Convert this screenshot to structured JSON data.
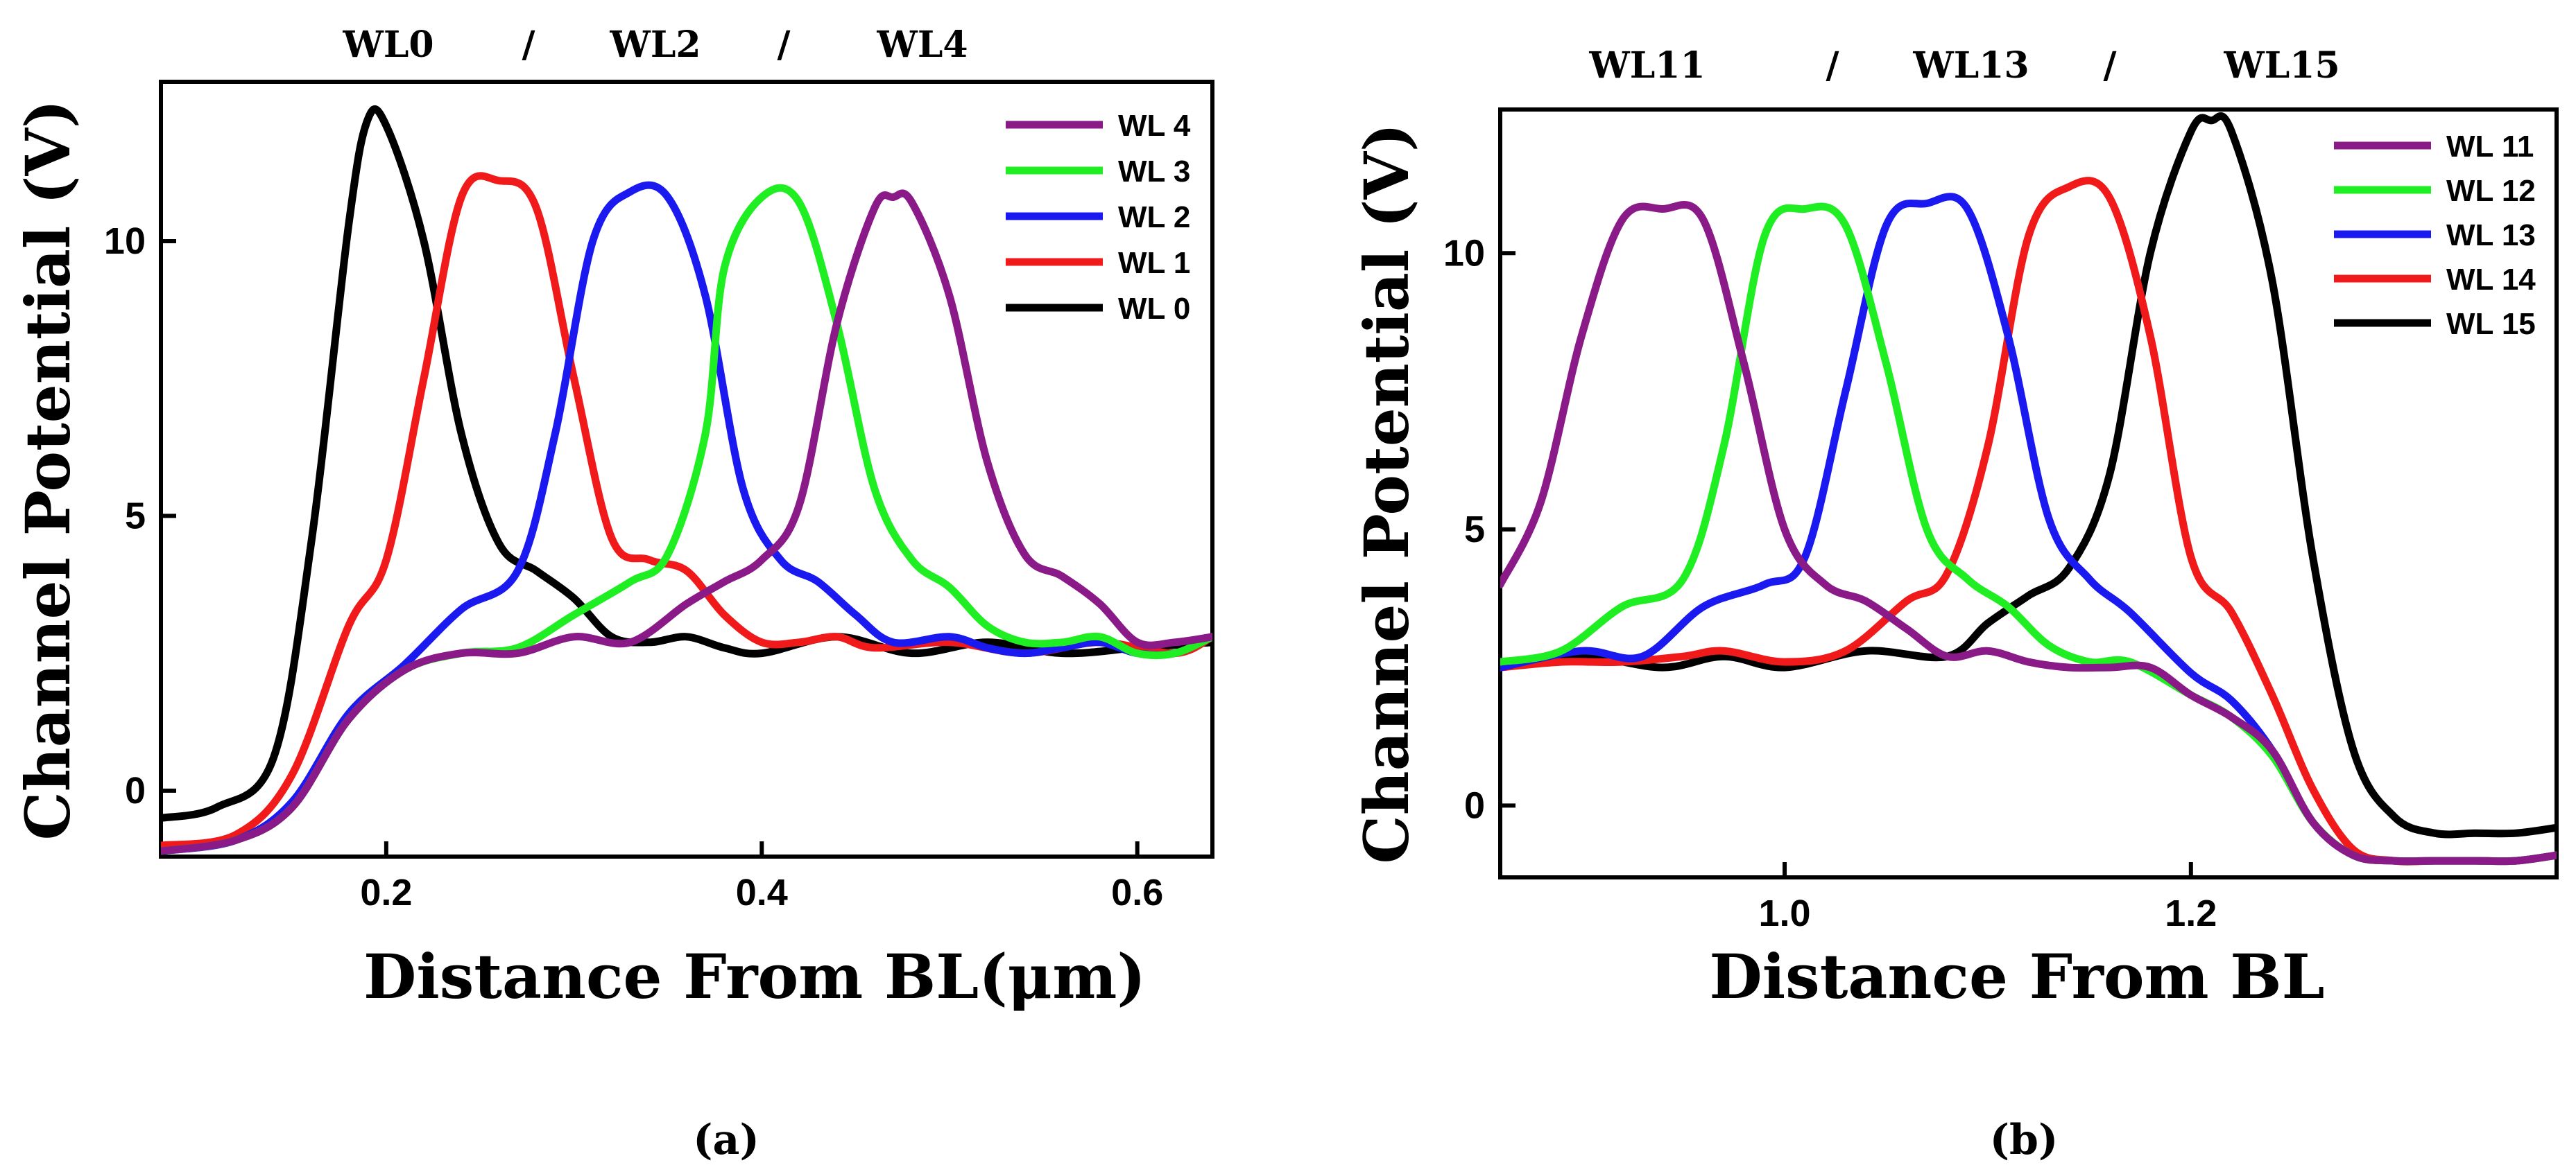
{
  "chart_data": [
    {
      "type": "line",
      "panel_label": "(a)",
      "header": {
        "left": "WL0",
        "sep1": "/",
        "mid": "WL2",
        "sep2": "/",
        "right": "WL4"
      },
      "title": "",
      "xlabel": "Distance From BL(μm)",
      "ylabel": "Channel Potential (V)",
      "xlim": [
        0.08,
        0.64
      ],
      "ylim": [
        -1.2,
        12.9
      ],
      "xticks": [
        0.2,
        0.4,
        0.6
      ],
      "xtick_labels": [
        "0.2",
        "0.4",
        "0.6"
      ],
      "yticks": [
        0,
        5,
        10
      ],
      "ytick_labels": [
        "0",
        "5",
        "10"
      ],
      "grid": false,
      "legend_position": "top-right",
      "legend": [
        "WL 4",
        "WL 3",
        "WL 2",
        "WL 1",
        "WL 0"
      ],
      "series": [
        {
          "name": "WL 4",
          "color": "#8B1A89",
          "x": [
            0.08,
            0.12,
            0.15,
            0.18,
            0.21,
            0.24,
            0.27,
            0.3,
            0.33,
            0.36,
            0.38,
            0.4,
            0.42,
            0.44,
            0.46,
            0.47,
            0.48,
            0.5,
            0.52,
            0.54,
            0.56,
            0.58,
            0.6,
            0.62,
            0.64
          ],
          "y": [
            -1.1,
            -0.9,
            -0.3,
            1.3,
            2.2,
            2.5,
            2.5,
            2.8,
            2.7,
            3.4,
            3.8,
            4.2,
            5.2,
            8.5,
            10.6,
            10.8,
            10.7,
            9.0,
            6.0,
            4.3,
            3.9,
            3.4,
            2.7,
            2.7,
            2.8
          ]
        },
        {
          "name": "WL 3",
          "color": "#1EEE22",
          "x": [
            0.08,
            0.12,
            0.15,
            0.18,
            0.21,
            0.24,
            0.27,
            0.3,
            0.33,
            0.35,
            0.37,
            0.38,
            0.4,
            0.42,
            0.44,
            0.46,
            0.48,
            0.5,
            0.52,
            0.54,
            0.56,
            0.58,
            0.6,
            0.62,
            0.64
          ],
          "y": [
            -1.1,
            -0.9,
            -0.3,
            1.3,
            2.2,
            2.5,
            2.6,
            3.2,
            3.8,
            4.3,
            6.5,
            9.5,
            10.8,
            10.7,
            8.5,
            5.5,
            4.2,
            3.7,
            3.0,
            2.7,
            2.7,
            2.8,
            2.5,
            2.5,
            2.8
          ]
        },
        {
          "name": "WL 2",
          "color": "#1A1AF0",
          "x": [
            0.08,
            0.12,
            0.15,
            0.18,
            0.21,
            0.24,
            0.27,
            0.29,
            0.31,
            0.33,
            0.35,
            0.37,
            0.39,
            0.41,
            0.43,
            0.45,
            0.47,
            0.5,
            0.52,
            0.54,
            0.56,
            0.58,
            0.6,
            0.62,
            0.64
          ],
          "y": [
            -1.1,
            -0.9,
            -0.2,
            1.4,
            2.3,
            3.3,
            4.0,
            6.5,
            10.0,
            10.9,
            10.8,
            9.0,
            5.5,
            4.2,
            3.8,
            3.2,
            2.7,
            2.8,
            2.6,
            2.5,
            2.6,
            2.7,
            2.5,
            2.5,
            2.8
          ]
        },
        {
          "name": "WL 1",
          "color": "#F01A1A",
          "x": [
            0.08,
            0.12,
            0.15,
            0.18,
            0.2,
            0.22,
            0.24,
            0.26,
            0.28,
            0.3,
            0.32,
            0.34,
            0.36,
            0.38,
            0.4,
            0.42,
            0.44,
            0.46,
            0.5,
            0.54,
            0.58,
            0.62,
            0.64
          ],
          "y": [
            -1.0,
            -0.8,
            0.3,
            3.0,
            4.2,
            7.5,
            10.8,
            11.1,
            10.6,
            7.5,
            4.6,
            4.2,
            4.0,
            3.2,
            2.7,
            2.7,
            2.8,
            2.6,
            2.7,
            2.5,
            2.7,
            2.5,
            2.8
          ]
        },
        {
          "name": "WL 0",
          "color": "#000000",
          "x": [
            0.08,
            0.11,
            0.14,
            0.16,
            0.18,
            0.19,
            0.2,
            0.22,
            0.24,
            0.26,
            0.28,
            0.3,
            0.32,
            0.34,
            0.36,
            0.38,
            0.4,
            0.44,
            0.48,
            0.52,
            0.56,
            0.6,
            0.64
          ],
          "y": [
            -0.5,
            -0.3,
            0.6,
            4.5,
            10.3,
            12.2,
            12.1,
            10.0,
            6.5,
            4.5,
            4.0,
            3.5,
            2.8,
            2.7,
            2.8,
            2.6,
            2.5,
            2.8,
            2.5,
            2.7,
            2.5,
            2.6,
            2.7
          ]
        }
      ]
    },
    {
      "type": "line",
      "panel_label": "(b)",
      "header": {
        "left": "WL11",
        "sep1": "/",
        "mid": "WL13",
        "sep2": "/",
        "right": "WL15"
      },
      "title": "",
      "xlabel": "Distance From BL",
      "ylabel": "Channel Potential (V)",
      "xlim": [
        0.86,
        1.38
      ],
      "ylim": [
        -1.3,
        12.6
      ],
      "xticks": [
        1.0,
        1.2
      ],
      "xtick_labels": [
        "1.0",
        "1.2"
      ],
      "yticks": [
        0,
        5,
        10
      ],
      "ytick_labels": [
        "0",
        "5",
        "10"
      ],
      "grid": false,
      "legend_position": "top-right",
      "legend": [
        "WL 11",
        "WL 12",
        "WL 13",
        "WL 14",
        "WL 15"
      ],
      "series": [
        {
          "name": "WL 11",
          "color": "#8B1A89",
          "x": [
            0.86,
            0.88,
            0.9,
            0.92,
            0.94,
            0.96,
            0.98,
            1.0,
            1.02,
            1.04,
            1.06,
            1.08,
            1.1,
            1.12,
            1.14,
            1.16,
            1.18,
            1.2,
            1.22,
            1.24,
            1.26,
            1.28,
            1.3,
            1.32,
            1.34,
            1.36,
            1.38
          ],
          "y": [
            4.0,
            5.5,
            8.5,
            10.6,
            10.8,
            10.6,
            8.0,
            5.0,
            4.0,
            3.7,
            3.2,
            2.7,
            2.8,
            2.6,
            2.5,
            2.5,
            2.5,
            2.0,
            1.6,
            1.0,
            -0.3,
            -0.9,
            -1.0,
            -1.0,
            -1.0,
            -1.0,
            -0.9
          ]
        },
        {
          "name": "WL 12",
          "color": "#1EEE22",
          "x": [
            0.86,
            0.89,
            0.92,
            0.95,
            0.97,
            0.99,
            1.01,
            1.03,
            1.05,
            1.07,
            1.09,
            1.11,
            1.13,
            1.15,
            1.17,
            1.2,
            1.22,
            1.24,
            1.26,
            1.28,
            1.3,
            1.32,
            1.34,
            1.36,
            1.38
          ],
          "y": [
            2.6,
            2.8,
            3.6,
            4.1,
            6.5,
            10.3,
            10.8,
            10.5,
            8.0,
            5.0,
            4.1,
            3.6,
            2.9,
            2.6,
            2.6,
            2.0,
            1.6,
            0.9,
            -0.3,
            -0.9,
            -1.0,
            -1.0,
            -1.0,
            -1.0,
            -0.9
          ]
        },
        {
          "name": "WL 13",
          "color": "#1A1AF0",
          "x": [
            0.86,
            0.9,
            0.93,
            0.96,
            0.99,
            1.01,
            1.03,
            1.05,
            1.07,
            1.09,
            1.11,
            1.13,
            1.15,
            1.17,
            1.2,
            1.22,
            1.24,
            1.26,
            1.28,
            1.3,
            1.32,
            1.34,
            1.36,
            1.38
          ],
          "y": [
            2.5,
            2.8,
            2.7,
            3.6,
            4.0,
            4.5,
            7.5,
            10.5,
            10.9,
            10.8,
            8.5,
            5.2,
            4.1,
            3.5,
            2.4,
            1.9,
            1.0,
            -0.3,
            -0.9,
            -1.0,
            -1.0,
            -1.0,
            -1.0,
            -0.9
          ]
        },
        {
          "name": "WL 14",
          "color": "#F01A1A",
          "x": [
            0.86,
            0.89,
            0.92,
            0.95,
            0.97,
            1.0,
            1.03,
            1.06,
            1.08,
            1.1,
            1.12,
            1.14,
            1.16,
            1.18,
            1.2,
            1.22,
            1.24,
            1.26,
            1.28,
            1.3,
            1.32,
            1.34,
            1.36,
            1.38
          ],
          "y": [
            2.5,
            2.6,
            2.6,
            2.7,
            2.8,
            2.6,
            2.8,
            3.7,
            4.2,
            6.5,
            10.3,
            11.2,
            11.0,
            8.5,
            4.5,
            3.5,
            2.0,
            0.3,
            -0.8,
            -1.0,
            -1.0,
            -1.0,
            -1.0,
            -0.9
          ]
        },
        {
          "name": "WL 15",
          "color": "#000000",
          "x": [
            0.86,
            0.9,
            0.94,
            0.97,
            1.0,
            1.04,
            1.08,
            1.1,
            1.12,
            1.14,
            1.16,
            1.18,
            1.2,
            1.21,
            1.22,
            1.24,
            1.26,
            1.28,
            1.3,
            1.32,
            1.34,
            1.36,
            1.38
          ],
          "y": [
            2.5,
            2.7,
            2.5,
            2.7,
            2.5,
            2.8,
            2.7,
            3.3,
            3.8,
            4.3,
            6.0,
            10.0,
            12.2,
            12.4,
            12.2,
            9.5,
            4.5,
            1.0,
            -0.2,
            -0.5,
            -0.5,
            -0.5,
            -0.4
          ]
        }
      ]
    }
  ]
}
